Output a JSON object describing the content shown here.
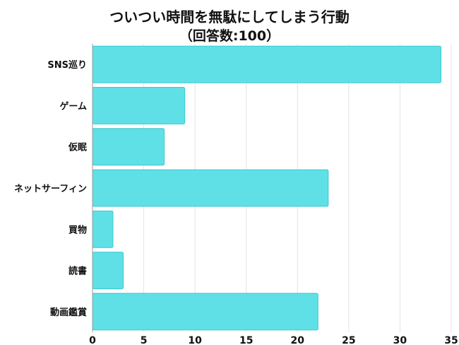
{
  "chart_data": {
    "type": "bar",
    "orientation": "horizontal",
    "title": "ついつい時間を無駄にしてしまう行動",
    "subtitle": "（回答数:100）",
    "categories": [
      "SNS巡り",
      "ゲーム",
      "仮眠",
      "ネットサーフィン",
      "買物",
      "読書",
      "動画鑑賞"
    ],
    "values": [
      34,
      9,
      7,
      23,
      2,
      3,
      22
    ],
    "xlim": [
      0,
      35
    ],
    "xticks": [
      0,
      5,
      10,
      15,
      20,
      25,
      30,
      35
    ],
    "grid": true,
    "legend": "none",
    "bar_color": "#5ee0e6",
    "bar_edge_color": "#3fc7ce",
    "grid_color": "#e4e4e4"
  }
}
